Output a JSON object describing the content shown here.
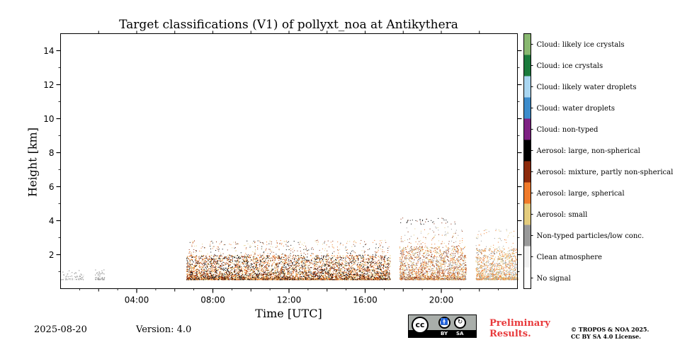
{
  "chart_data": {
    "type": "heatmap",
    "title": "Target classifications (V1) of pollyxt_noa at Antikythera",
    "xlabel": "Time [UTC]",
    "ylabel": "Height [km]",
    "xlim": [
      0,
      24
    ],
    "ylim": [
      0,
      15
    ],
    "x_ticks": [
      {
        "value": 4,
        "label": "04:00"
      },
      {
        "value": 8,
        "label": "08:00"
      },
      {
        "value": 12,
        "label": "12:00"
      },
      {
        "value": 16,
        "label": "16:00"
      },
      {
        "value": 20,
        "label": "20:00"
      }
    ],
    "y_ticks": [
      {
        "value": 2,
        "label": "2"
      },
      {
        "value": 4,
        "label": "4"
      },
      {
        "value": 6,
        "label": "6"
      },
      {
        "value": 8,
        "label": "8"
      },
      {
        "value": 10,
        "label": "10"
      },
      {
        "value": 12,
        "label": "12"
      },
      {
        "value": 14,
        "label": "14"
      }
    ],
    "classes": [
      {
        "id": 0,
        "label": "No signal",
        "color": "#ffffff"
      },
      {
        "id": 1,
        "label": "Clean atmosphere",
        "color": "#f1f1f1"
      },
      {
        "id": 2,
        "label": "Non-typed particles/low conc.",
        "color": "#999999"
      },
      {
        "id": 3,
        "label": "Aerosol: small",
        "color": "#e4cc7d"
      },
      {
        "id": 4,
        "label": "Aerosol: large, spherical",
        "color": "#f07a2a"
      },
      {
        "id": 5,
        "label": "Aerosol: mixture, partly non-spherical",
        "color": "#8c2a0b"
      },
      {
        "id": 6,
        "label": "Aerosol: large, non-spherical",
        "color": "#000000"
      },
      {
        "id": 7,
        "label": "Cloud: non-typed",
        "color": "#7e2183"
      },
      {
        "id": 8,
        "label": "Cloud: water droplets",
        "color": "#3d8ccb"
      },
      {
        "id": 9,
        "label": "Cloud: likely water droplets",
        "color": "#a9d6f1"
      },
      {
        "id": 10,
        "label": "Cloud: ice crystals",
        "color": "#1b7a3c"
      },
      {
        "id": 11,
        "label": "Cloud: likely ice crystals",
        "color": "#88b870"
      }
    ],
    "segments": [
      {
        "t_start": 0.0,
        "t_end": 1.2,
        "top_km": 1.1,
        "dominant": [
          "Non-typed particles/low conc.",
          "Clean atmosphere"
        ]
      },
      {
        "t_start": 1.8,
        "t_end": 2.3,
        "top_km": 1.2,
        "dominant": [
          "Non-typed particles/low conc."
        ]
      },
      {
        "t_start": 6.6,
        "t_end": 17.3,
        "top_km": 2.0,
        "dominant": [
          "Aerosol: large, spherical",
          "Aerosol: mixture, partly non-spherical",
          "Aerosol: large, non-spherical",
          "Aerosol: small"
        ]
      },
      {
        "t_start": 17.8,
        "t_end": 21.3,
        "top_km": 2.5,
        "dominant": [
          "Aerosol: large, spherical",
          "Aerosol: small",
          "Non-typed particles/low conc.",
          "Aerosol: mixture, partly non-spherical"
        ]
      },
      {
        "t_start": 21.8,
        "t_end": 24.0,
        "top_km": 2.4,
        "dominant": [
          "Aerosol: large, spherical",
          "Aerosol: small",
          "Non-typed particles/low conc."
        ]
      }
    ],
    "sparse_layers": [
      {
        "t_start": 17.8,
        "t_end": 20.8,
        "height_km": 4.0,
        "dominant": [
          "Aerosol: mixture, partly non-spherical",
          "Aerosol: large, non-spherical"
        ]
      }
    ],
    "colorbar_position": "right",
    "grid": false
  },
  "footer": {
    "date": "2025-08-20",
    "version": "Version: 4.0",
    "preliminary_line1": "Preliminary",
    "preliminary_line2": "Results.",
    "copyright_line1": "© TROPOS & NOA 2025.",
    "copyright_line2": "CC BY SA 4.0 License.",
    "license_badge": {
      "main": "cc",
      "by": "BY",
      "sa": "SA",
      "icons": [
        "cc-icon",
        "by-person-icon",
        "sa-share-alike-icon"
      ]
    }
  }
}
